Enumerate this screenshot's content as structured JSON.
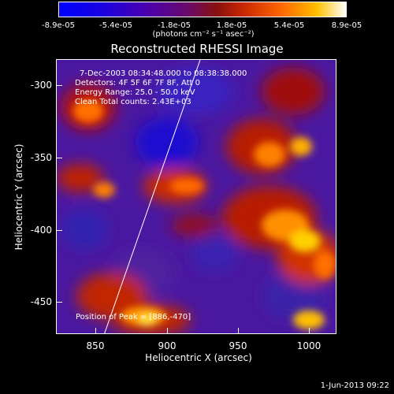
{
  "colorbar": {
    "ticks": [
      "-8.9e-05",
      "-5.4e-05",
      "-1.8e-05",
      "1.8e-05",
      "5.4e-05",
      "8.9e-05"
    ],
    "units": "(photons cm⁻² s⁻¹ asec⁻²)"
  },
  "title": "Reconstructed RHESSI Image",
  "info": {
    "time": "7-Dec-2003 08:34:48.000 to 08:38:38.000",
    "detectors": "Detectors: 4F 5F 6F 7F 8F, Att 0",
    "energy": "Energy Range: 25.0 - 50.0 keV",
    "clean": "Clean    Total counts: 2.43E+03"
  },
  "peak": "Position of Peak = [886,-470]",
  "axes": {
    "xlabel": "Heliocentric X (arcsec)",
    "ylabel": "Heliocentric Y (arcsec)",
    "xticks": [
      "850",
      "900",
      "950",
      "1000"
    ],
    "yticks": [
      "-300",
      "-350",
      "-400",
      "-450"
    ]
  },
  "footer_date": "1-Jun-2013 09:22"
}
